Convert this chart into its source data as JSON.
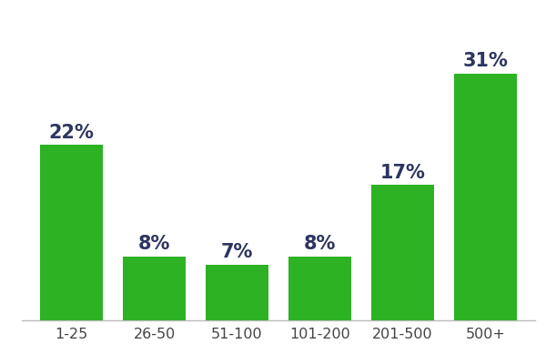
{
  "categories": [
    "1-25",
    "26-50",
    "51-100",
    "101-200",
    "201-500",
    "500+"
  ],
  "values": [
    22,
    8,
    7,
    8,
    17,
    31
  ],
  "bar_color": "#2db224",
  "label_color": "#2d3561",
  "label_fontsize": 15,
  "tick_fontsize": 11.5,
  "background_color": "#ffffff",
  "ylim": [
    0,
    37
  ],
  "bar_width": 0.75
}
